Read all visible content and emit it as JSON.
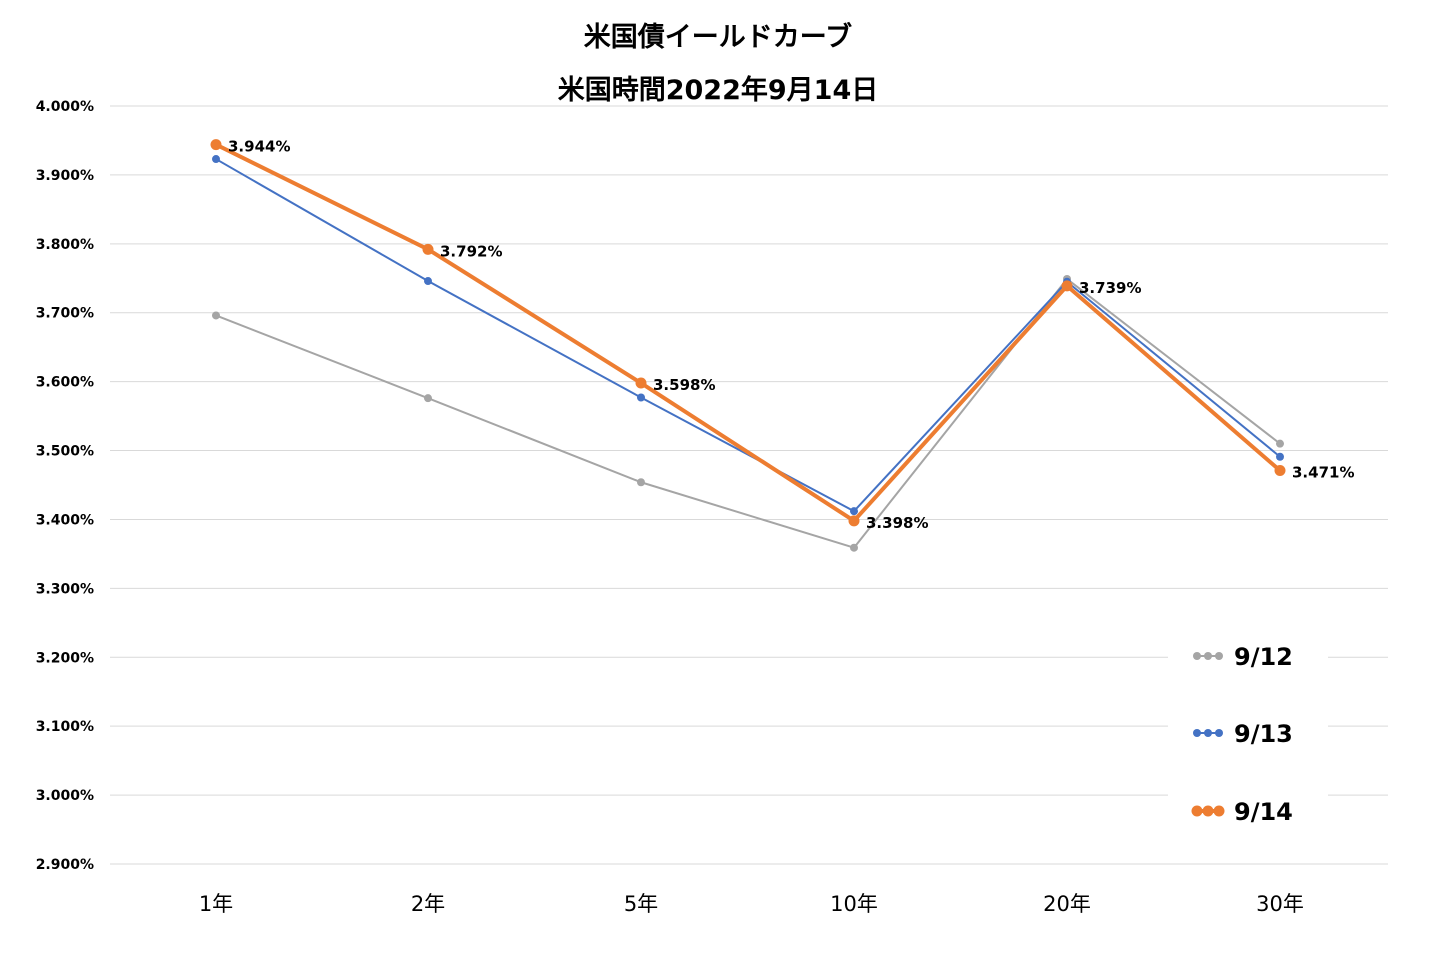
{
  "chart_data": {
    "type": "line",
    "title": "米国債イールドカーブ",
    "subtitle": "米国時間2022年9月14日",
    "categories": [
      "1年",
      "2年",
      "5年",
      "10年",
      "20年",
      "30年"
    ],
    "ylim": [
      2.9,
      4.0
    ],
    "y_ticks": [
      {
        "value": 4.0,
        "label": "4.000%"
      },
      {
        "value": 3.9,
        "label": "3.900%"
      },
      {
        "value": 3.8,
        "label": "3.800%"
      },
      {
        "value": 3.7,
        "label": "3.700%"
      },
      {
        "value": 3.6,
        "label": "3.600%"
      },
      {
        "value": 3.5,
        "label": "3.500%"
      },
      {
        "value": 3.4,
        "label": "3.400%"
      },
      {
        "value": 3.3,
        "label": "3.300%"
      },
      {
        "value": 3.2,
        "label": "3.200%"
      },
      {
        "value": 3.1,
        "label": "3.100%"
      },
      {
        "value": 3.0,
        "label": "3.000%"
      },
      {
        "value": 2.9,
        "label": "2.900%"
      }
    ],
    "grid": "horizontal",
    "legend_position": "bottom-right",
    "series": [
      {
        "name": "9/12",
        "color": "#a5a5a5",
        "values": [
          3.696,
          3.576,
          3.454,
          3.359,
          3.749,
          3.51
        ],
        "data_labels": []
      },
      {
        "name": "9/13",
        "color": "#4472c4",
        "values": [
          3.923,
          3.746,
          3.577,
          3.412,
          3.745,
          3.491
        ],
        "data_labels": []
      },
      {
        "name": "9/14",
        "color": "#ed7d31",
        "values": [
          3.944,
          3.792,
          3.598,
          3.398,
          3.739,
          3.471
        ],
        "data_labels": [
          "3.944%",
          "3.792%",
          "3.598%",
          "3.398%",
          "3.739%",
          "3.471%"
        ]
      }
    ]
  }
}
